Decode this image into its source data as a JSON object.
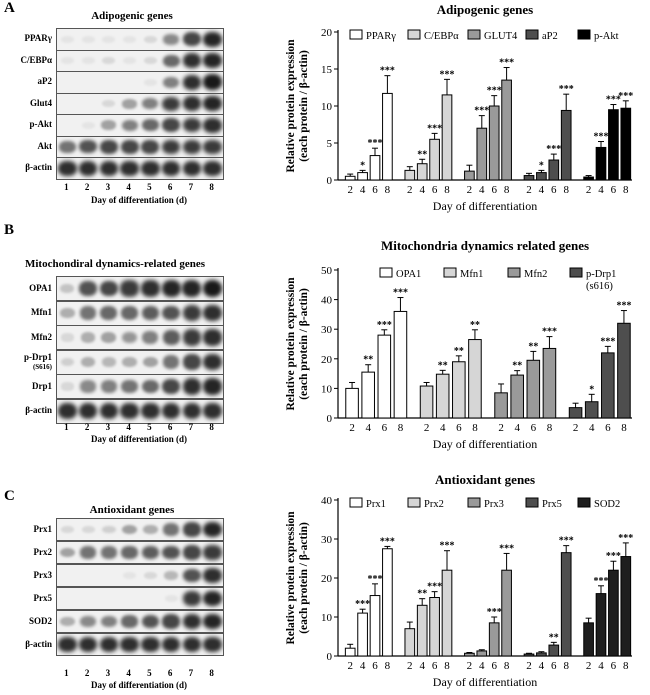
{
  "panels": [
    {
      "letter": "A",
      "blot": {
        "title": "Adipogenic genes",
        "rows": [
          {
            "label": "PPARγ",
            "intensity": [
              0.05,
              0.05,
              0.05,
              0.05,
              0.1,
              0.45,
              0.75,
              0.9
            ]
          },
          {
            "label": "C/EBPα",
            "intensity": [
              0.05,
              0.05,
              0.1,
              0.05,
              0.1,
              0.6,
              0.85,
              0.9
            ]
          },
          {
            "label": "aP2",
            "intensity": [
              0.0,
              0.0,
              0.0,
              0.0,
              0.05,
              0.5,
              0.85,
              0.95
            ]
          },
          {
            "label": "Glut4",
            "intensity": [
              0.0,
              0.0,
              0.1,
              0.35,
              0.5,
              0.8,
              0.85,
              0.9
            ]
          },
          {
            "label": "p-Akt",
            "intensity": [
              0.0,
              0.05,
              0.35,
              0.5,
              0.6,
              0.75,
              0.8,
              0.85
            ]
          },
          {
            "label": "Akt",
            "intensity": [
              0.55,
              0.7,
              0.75,
              0.75,
              0.75,
              0.8,
              0.8,
              0.8
            ]
          },
          {
            "label": "β-actin",
            "intensity": [
              0.85,
              0.85,
              0.85,
              0.85,
              0.85,
              0.85,
              0.85,
              0.85
            ]
          }
        ],
        "lanes": [
          "1",
          "2",
          "3",
          "4",
          "5",
          "6",
          "7",
          "8"
        ],
        "xlabel": "Day of differentiation (d)"
      }
    },
    {
      "letter": "B",
      "blot": {
        "title": "Mitochondiral dynamics-related genes",
        "rows": [
          {
            "label": "OPA1",
            "sub": "",
            "intensity": [
              0.2,
              0.7,
              0.75,
              0.8,
              0.85,
              0.9,
              0.9,
              0.95
            ]
          },
          {
            "label": "Mfn1",
            "sub": "",
            "intensity": [
              0.3,
              0.55,
              0.6,
              0.6,
              0.65,
              0.7,
              0.8,
              0.85
            ]
          },
          {
            "label": "Mfn2",
            "sub": "",
            "intensity": [
              0.1,
              0.3,
              0.35,
              0.4,
              0.5,
              0.65,
              0.8,
              0.85
            ]
          },
          {
            "label": "p-Drp1",
            "sub": "(S616)",
            "intensity": [
              0.15,
              0.3,
              0.25,
              0.3,
              0.35,
              0.55,
              0.75,
              0.85
            ]
          },
          {
            "label": "Drp1",
            "sub": "",
            "intensity": [
              0.1,
              0.45,
              0.5,
              0.55,
              0.6,
              0.75,
              0.85,
              0.9
            ]
          },
          {
            "label": "β-actin",
            "sub": "",
            "intensity": [
              0.85,
              0.85,
              0.85,
              0.85,
              0.85,
              0.85,
              0.85,
              0.85
            ]
          }
        ],
        "lanes": [
          "1",
          "2",
          "3",
          "4",
          "5",
          "6",
          "7",
          "8"
        ],
        "xlabel": "Day of differentiation (d)"
      }
    },
    {
      "letter": "C",
      "blot": {
        "title": "Antioxidant genes",
        "rows": [
          {
            "label": "Prx1",
            "intensity": [
              0.1,
              0.1,
              0.15,
              0.35,
              0.3,
              0.55,
              0.75,
              0.9
            ]
          },
          {
            "label": "Prx2",
            "intensity": [
              0.35,
              0.55,
              0.55,
              0.6,
              0.65,
              0.7,
              0.75,
              0.8
            ]
          },
          {
            "label": "Prx3",
            "intensity": [
              0.0,
              0.0,
              0.0,
              0.05,
              0.1,
              0.25,
              0.7,
              0.85
            ]
          },
          {
            "label": "Prx5",
            "intensity": [
              0.0,
              0.0,
              0.0,
              0.0,
              0.0,
              0.05,
              0.8,
              0.9
            ]
          },
          {
            "label": "SOD2",
            "intensity": [
              0.3,
              0.45,
              0.5,
              0.6,
              0.7,
              0.75,
              0.85,
              0.9
            ]
          },
          {
            "label": "β-actin",
            "intensity": [
              0.85,
              0.85,
              0.85,
              0.85,
              0.85,
              0.85,
              0.85,
              0.85
            ]
          }
        ],
        "lanes": [
          "1",
          "2",
          "3",
          "4",
          "5",
          "6",
          "7",
          "8"
        ],
        "xlabel": "Day of differentiation (d)"
      }
    }
  ],
  "chart_data": [
    {
      "type": "bar",
      "title": "Adipogenic genes",
      "ylabel": "Relative protein expression\n(each protein / β-actin)",
      "xlabel": "Day of differentiation",
      "ylim": [
        0,
        20
      ],
      "yticks": [
        0,
        5,
        10,
        15,
        20
      ],
      "categories": [
        "2",
        "4",
        "6",
        "8"
      ],
      "series": [
        {
          "name": "PPARγ",
          "fill": "#ffffff",
          "values": [
            0.5,
            1.0,
            3.3,
            11.7
          ],
          "errors": [
            0.3,
            0.3,
            1.0,
            2.4
          ],
          "stars": [
            "",
            "*",
            "***",
            "***"
          ]
        },
        {
          "name": "C/EBPα",
          "fill": "#d6d6d6",
          "values": [
            1.3,
            2.2,
            5.5,
            11.5
          ],
          "errors": [
            0.5,
            0.6,
            0.8,
            2.1
          ],
          "stars": [
            "",
            "**",
            "***",
            "***"
          ]
        },
        {
          "name": "GLUT4",
          "fill": "#9a9a9a",
          "values": [
            1.2,
            7.0,
            10.0,
            13.5
          ],
          "errors": [
            0.8,
            1.7,
            1.4,
            1.7
          ],
          "stars": [
            "",
            "***",
            "***",
            "***"
          ]
        },
        {
          "name": "aP2",
          "fill": "#4e4e4e",
          "values": [
            0.6,
            1.0,
            2.7,
            9.4
          ],
          "errors": [
            0.3,
            0.3,
            0.8,
            2.2
          ],
          "stars": [
            "",
            "*",
            "***",
            "***"
          ]
        },
        {
          "name": "p-Akt",
          "fill": "#000000",
          "values": [
            0.4,
            4.4,
            9.5,
            9.7
          ],
          "errors": [
            0.2,
            0.8,
            0.7,
            1.0
          ],
          "stars": [
            "",
            "***",
            "***",
            "***"
          ]
        }
      ]
    },
    {
      "type": "bar",
      "title": "Mitochondria dynamics related genes",
      "ylabel": "Relative protein expression\n(each protein / β-actin)",
      "xlabel": "Day of differentiation",
      "ylim": [
        0,
        50
      ],
      "yticks": [
        0,
        10,
        20,
        30,
        40,
        50
      ],
      "categories": [
        "2",
        "4",
        "6",
        "8"
      ],
      "series": [
        {
          "name": "OPA1",
          "fill": "#ffffff",
          "values": [
            10.0,
            15.5,
            28.0,
            36.0
          ],
          "errors": [
            2.0,
            2.5,
            1.8,
            4.7
          ],
          "stars": [
            "",
            "**",
            "***",
            "***"
          ]
        },
        {
          "name": "Mfn1",
          "fill": "#d6d6d6",
          "values": [
            10.8,
            14.8,
            19.0,
            26.5
          ],
          "errors": [
            1.2,
            1.3,
            2.0,
            3.3
          ],
          "stars": [
            "",
            "**",
            "**",
            "**"
          ]
        },
        {
          "name": "Mfn2",
          "fill": "#9a9a9a",
          "values": [
            8.5,
            14.5,
            19.5,
            23.5
          ],
          "errors": [
            3.0,
            1.5,
            3.0,
            4.0
          ],
          "stars": [
            "",
            "**",
            "**",
            "***"
          ]
        },
        {
          "name": "p-Drp1\n(s616)",
          "fill": "#4e4e4e",
          "values": [
            3.5,
            5.5,
            22.0,
            32.0
          ],
          "errors": [
            1.5,
            2.5,
            2.2,
            4.3
          ],
          "stars": [
            "",
            "*",
            "***",
            "***"
          ]
        }
      ]
    },
    {
      "type": "bar",
      "title": "Antioxidant genes",
      "ylabel": "Relative protein expression\n(each protein / β-actin)",
      "xlabel": "Day of differentiation",
      "ylim": [
        0,
        40
      ],
      "yticks": [
        0,
        10,
        20,
        30,
        40
      ],
      "categories": [
        "2",
        "4",
        "6",
        "8"
      ],
      "series": [
        {
          "name": "Prx1",
          "fill": "#ffffff",
          "values": [
            2.0,
            11.0,
            15.5,
            27.5
          ],
          "errors": [
            1.0,
            1.0,
            3.0,
            0.6
          ],
          "stars": [
            "",
            "***",
            "***",
            "***"
          ]
        },
        {
          "name": "Prx2",
          "fill": "#d6d6d6",
          "values": [
            7.0,
            13.0,
            15.0,
            22.0
          ],
          "errors": [
            1.7,
            1.7,
            1.5,
            5.0
          ],
          "stars": [
            "",
            "**",
            "***",
            "***"
          ]
        },
        {
          "name": "Prx3",
          "fill": "#9a9a9a",
          "values": [
            0.7,
            1.3,
            8.5,
            22.0
          ],
          "errors": [
            0.2,
            0.3,
            1.5,
            4.3
          ],
          "stars": [
            "",
            "",
            "***",
            "***"
          ]
        },
        {
          "name": "Prx5",
          "fill": "#4e4e4e",
          "values": [
            0.5,
            0.8,
            2.8,
            26.5
          ],
          "errors": [
            0.2,
            0.3,
            0.7,
            1.8
          ],
          "stars": [
            "",
            "",
            "**",
            "***"
          ]
        },
        {
          "name": "SOD2",
          "fill": "#1e1e1e",
          "values": [
            8.5,
            16.0,
            22.0,
            25.5
          ],
          "errors": [
            1.2,
            2.0,
            2.3,
            3.5
          ],
          "stars": [
            "",
            "***",
            "***",
            "***"
          ]
        }
      ]
    }
  ]
}
